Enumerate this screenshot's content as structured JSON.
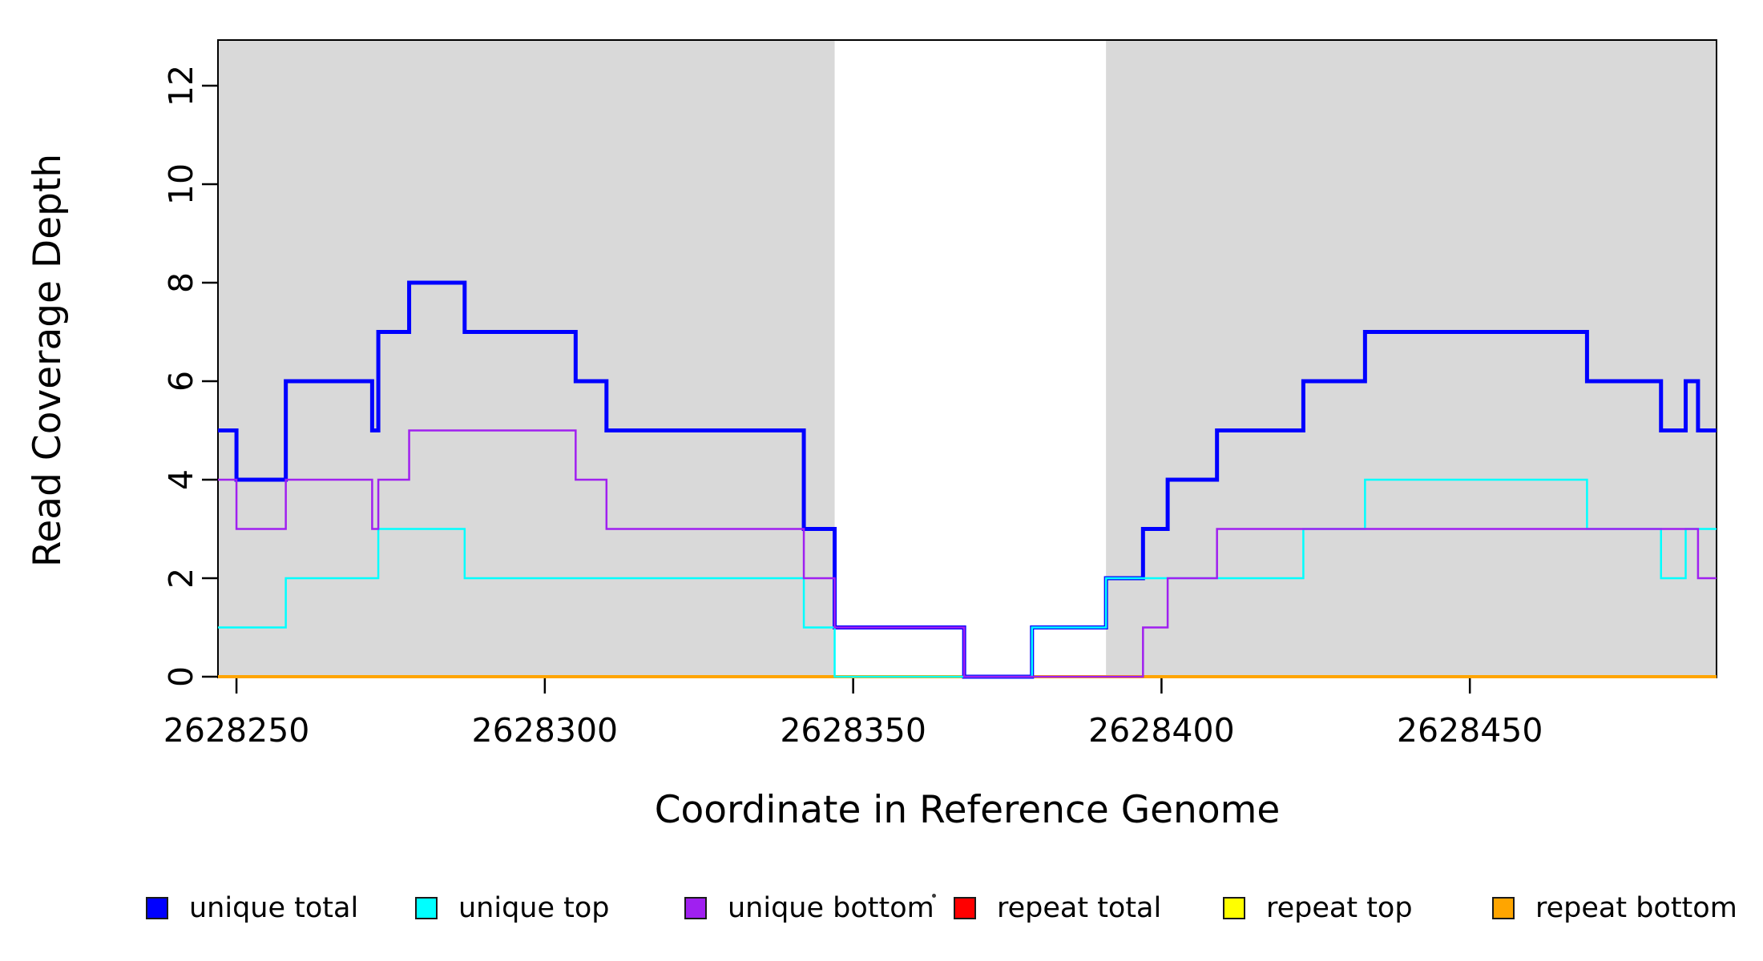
{
  "chart_data": {
    "type": "line",
    "subtype": "step-coverage-plot",
    "title": "",
    "xlabel": "Coordinate in Reference Genome",
    "ylabel": "Read Coverage Depth",
    "xlim": [
      2628247,
      2628490
    ],
    "ylim": [
      0,
      13
    ],
    "x_ticks": [
      2628250,
      2628300,
      2628350,
      2628400,
      2628450
    ],
    "y_ticks": [
      0,
      2,
      4,
      6,
      8,
      10,
      12
    ],
    "grid": false,
    "legend_position": "bottom-horizontal",
    "plot_bg_color": "#ffffff",
    "shaded_region_color": "#d9d9d9",
    "background_regions": [
      {
        "name": "shaded-region-left",
        "x0": 2628247,
        "x1": 2628347
      },
      {
        "name": "shaded-region-right",
        "x0": 2628391,
        "x1": 2628490
      }
    ],
    "series": [
      {
        "name": "repeat total",
        "color": "#ff0000",
        "width": 2,
        "points": [
          [
            2628247,
            0
          ]
        ]
      },
      {
        "name": "repeat top",
        "color": "#ffff00",
        "width": 2,
        "points": [
          [
            2628247,
            0
          ]
        ]
      },
      {
        "name": "repeat bottom",
        "color": "#ffa500",
        "width": 4,
        "points": [
          [
            2628247,
            0
          ]
        ]
      },
      {
        "name": "unique total",
        "color": "#0000ff",
        "width": 5,
        "points": [
          [
            2628247,
            5
          ],
          [
            2628250,
            4
          ],
          [
            2628258,
            6
          ],
          [
            2628272,
            5
          ],
          [
            2628273,
            7
          ],
          [
            2628278,
            8
          ],
          [
            2628287,
            7
          ],
          [
            2628305,
            6
          ],
          [
            2628310,
            5
          ],
          [
            2628342,
            3
          ],
          [
            2628347,
            1
          ],
          [
            2628368,
            0
          ],
          [
            2628379,
            1
          ],
          [
            2628391,
            2
          ],
          [
            2628397,
            3
          ],
          [
            2628401,
            4
          ],
          [
            2628409,
            5
          ],
          [
            2628423,
            6
          ],
          [
            2628433,
            7
          ],
          [
            2628469,
            6
          ],
          [
            2628481,
            5
          ],
          [
            2628485,
            6
          ],
          [
            2628487,
            5
          ]
        ]
      },
      {
        "name": "unique top",
        "color": "#00ffff",
        "width": 2.5,
        "points": [
          [
            2628247,
            1
          ],
          [
            2628258,
            2
          ],
          [
            2628273,
            3
          ],
          [
            2628287,
            2
          ],
          [
            2628342,
            1
          ],
          [
            2628347,
            0
          ],
          [
            2628379,
            1
          ],
          [
            2628391,
            2
          ],
          [
            2628423,
            3
          ],
          [
            2628433,
            4
          ],
          [
            2628469,
            3
          ],
          [
            2628481,
            2
          ],
          [
            2628485,
            3
          ]
        ]
      },
      {
        "name": "unique bottom",
        "color": "#a020f0",
        "width": 2.5,
        "points": [
          [
            2628247,
            4
          ],
          [
            2628250,
            3
          ],
          [
            2628258,
            4
          ],
          [
            2628272,
            3
          ],
          [
            2628273,
            4
          ],
          [
            2628278,
            5
          ],
          [
            2628305,
            4
          ],
          [
            2628310,
            3
          ],
          [
            2628342,
            2
          ],
          [
            2628347,
            1
          ],
          [
            2628368,
            0
          ],
          [
            2628397,
            1
          ],
          [
            2628401,
            2
          ],
          [
            2628409,
            3
          ],
          [
            2628487,
            2
          ]
        ]
      }
    ],
    "legend": [
      {
        "label": "unique total",
        "color": "#0000ff"
      },
      {
        "label": "unique top",
        "color": "#00ffff"
      },
      {
        "label": "unique bottom",
        "color": "#a020f0"
      },
      {
        "label": "repeat total",
        "color": "#ff0000"
      },
      {
        "label": "repeat top",
        "color": "#ffff00"
      },
      {
        "label": "repeat bottom",
        "color": "#ffa500"
      }
    ]
  }
}
